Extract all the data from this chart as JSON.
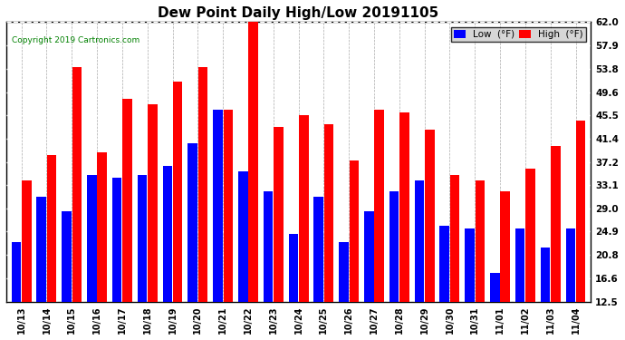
{
  "title": "Dew Point Daily High/Low 20191105",
  "copyright": "Copyright 2019 Cartronics.com",
  "dates": [
    "10/13",
    "10/14",
    "10/15",
    "10/16",
    "10/17",
    "10/18",
    "10/19",
    "10/20",
    "10/21",
    "10/22",
    "10/23",
    "10/24",
    "10/25",
    "10/26",
    "10/27",
    "10/28",
    "10/29",
    "10/30",
    "10/31",
    "11/01",
    "11/02",
    "11/03",
    "11/04"
  ],
  "high_values": [
    34.0,
    38.5,
    54.0,
    39.0,
    48.5,
    47.5,
    51.5,
    54.0,
    46.5,
    62.5,
    43.5,
    45.5,
    44.0,
    37.5,
    46.5,
    46.0,
    43.0,
    35.0,
    34.0,
    32.0,
    36.0,
    40.0,
    44.5
  ],
  "low_values": [
    23.0,
    31.0,
    28.5,
    35.0,
    34.5,
    35.0,
    36.5,
    40.5,
    46.5,
    35.5,
    32.0,
    24.5,
    31.0,
    23.0,
    28.5,
    32.0,
    34.0,
    26.0,
    25.5,
    17.5,
    25.5,
    22.0,
    25.5
  ],
  "high_color": "#FF0000",
  "low_color": "#0000FF",
  "background_color": "#FFFFFF",
  "grid_color": "#AAAAAA",
  "yticks": [
    12.5,
    16.6,
    20.8,
    24.9,
    29.0,
    33.1,
    37.2,
    41.4,
    45.5,
    49.6,
    53.8,
    57.9,
    62.0
  ],
  "ylim_min": 12.5,
  "ylim_max": 62.0,
  "title_fontsize": 11,
  "legend_blue_label": "Low  (°F)",
  "legend_red_label": "High  (°F)"
}
